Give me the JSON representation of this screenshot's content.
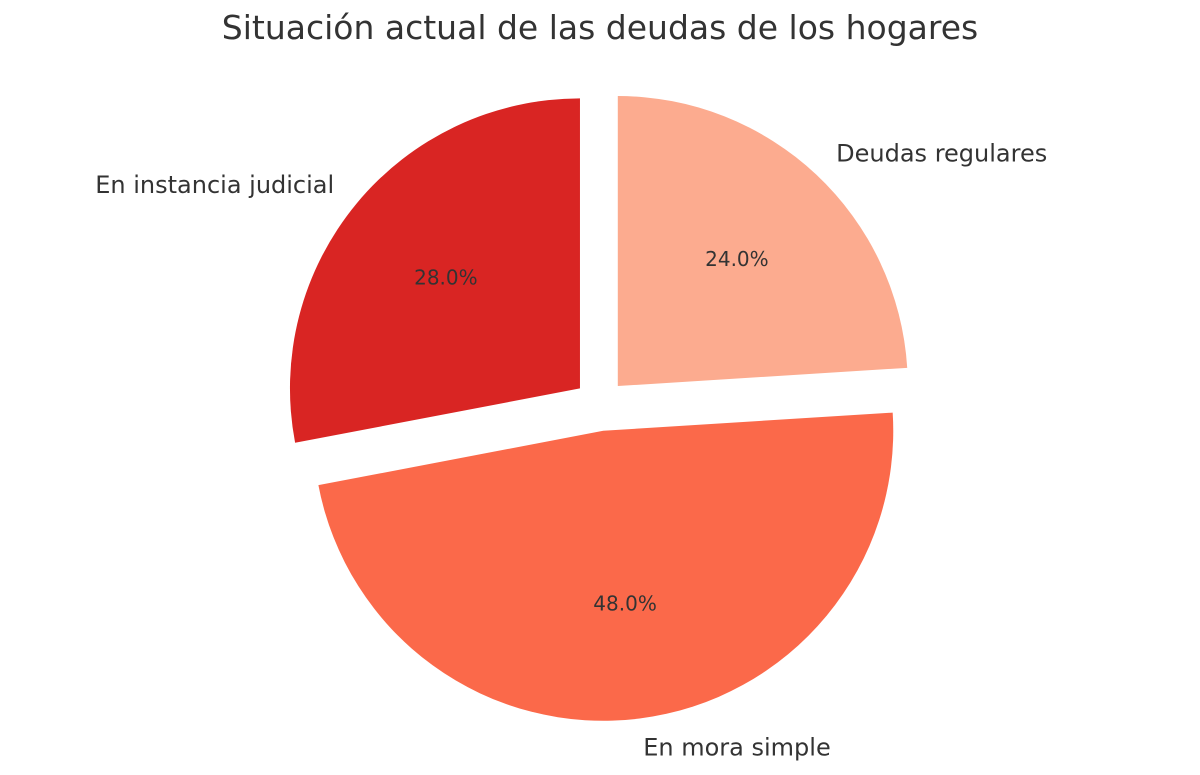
{
  "chart_data": {
    "type": "pie",
    "title": "Situación actual de las deudas de los hogares",
    "slices": [
      {
        "label": "Deudas regulares",
        "value": 24.0,
        "pct_label": "24.0%",
        "color": "#fcab8f"
      },
      {
        "label": "En mora simple",
        "value": 48.0,
        "pct_label": "48.0%",
        "color": "#fb694a"
      },
      {
        "label": "En instancia judicial",
        "value": 28.0,
        "pct_label": "28.0%",
        "color": "#d92523"
      }
    ],
    "start_angle": 90,
    "direction": "clockwise",
    "exploded": true
  }
}
